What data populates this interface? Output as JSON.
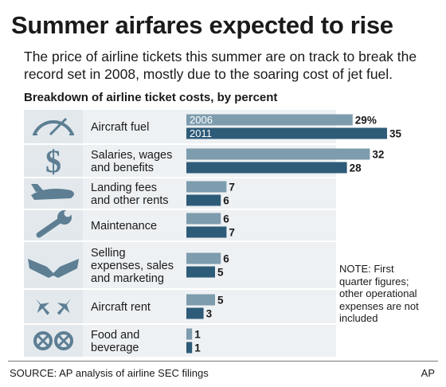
{
  "header": {
    "title": "Summer airfares expected to rise",
    "subtitle": "The price of airline tickets this summer are on track to break the record set in 2008, mostly due to the soaring cost of jet fuel."
  },
  "note": "NOTE: First quarter figures; other operational expenses are not included",
  "footer": {
    "source": "SOURCE: AP analysis of airline SEC filings",
    "credit": "AP"
  },
  "colors": {
    "series_2006": "#7d9cae",
    "series_2011": "#2e5b78",
    "row_background": "#eef1f3",
    "icon_panel": "#e2e8ec",
    "icon": "#5d7e93"
  },
  "chart_data": {
    "type": "bar",
    "orientation": "horizontal",
    "title": "Breakdown of airline ticket costs, by percent",
    "categories": [
      {
        "label_lines": [
          "Aircraft fuel"
        ],
        "icon": "fuel-gauge-icon"
      },
      {
        "label_lines": [
          "Salaries, wages",
          "and benefits"
        ],
        "icon": "dollar-sign-icon"
      },
      {
        "label_lines": [
          "Landing fees",
          "and other rents"
        ],
        "icon": "airplane-icon"
      },
      {
        "label_lines": [
          "Maintenance"
        ],
        "icon": "wrench-icon"
      },
      {
        "label_lines": [
          "Selling",
          "expenses, sales",
          "and marketing"
        ],
        "icon": "handshake-icon"
      },
      {
        "label_lines": [
          "Aircraft rent"
        ],
        "icon": "airplanes-icon"
      },
      {
        "label_lines": [
          "Food and",
          "beverage"
        ],
        "icon": "pretzel-icon"
      }
    ],
    "series": [
      {
        "name": "2006",
        "values": [
          29,
          32,
          7,
          6,
          6,
          5,
          1
        ]
      },
      {
        "name": "2011",
        "values": [
          35,
          28,
          6,
          7,
          5,
          3,
          1
        ]
      }
    ],
    "value_labels": [
      [
        "29%",
        "35"
      ],
      [
        "32",
        "28"
      ],
      [
        "7",
        "6"
      ],
      [
        "6",
        "7"
      ],
      [
        "6",
        "5"
      ],
      [
        "5",
        "3"
      ],
      [
        "1",
        "1"
      ]
    ],
    "legend": "inside first bars",
    "xlim": [
      0,
      35
    ],
    "grid": false
  }
}
